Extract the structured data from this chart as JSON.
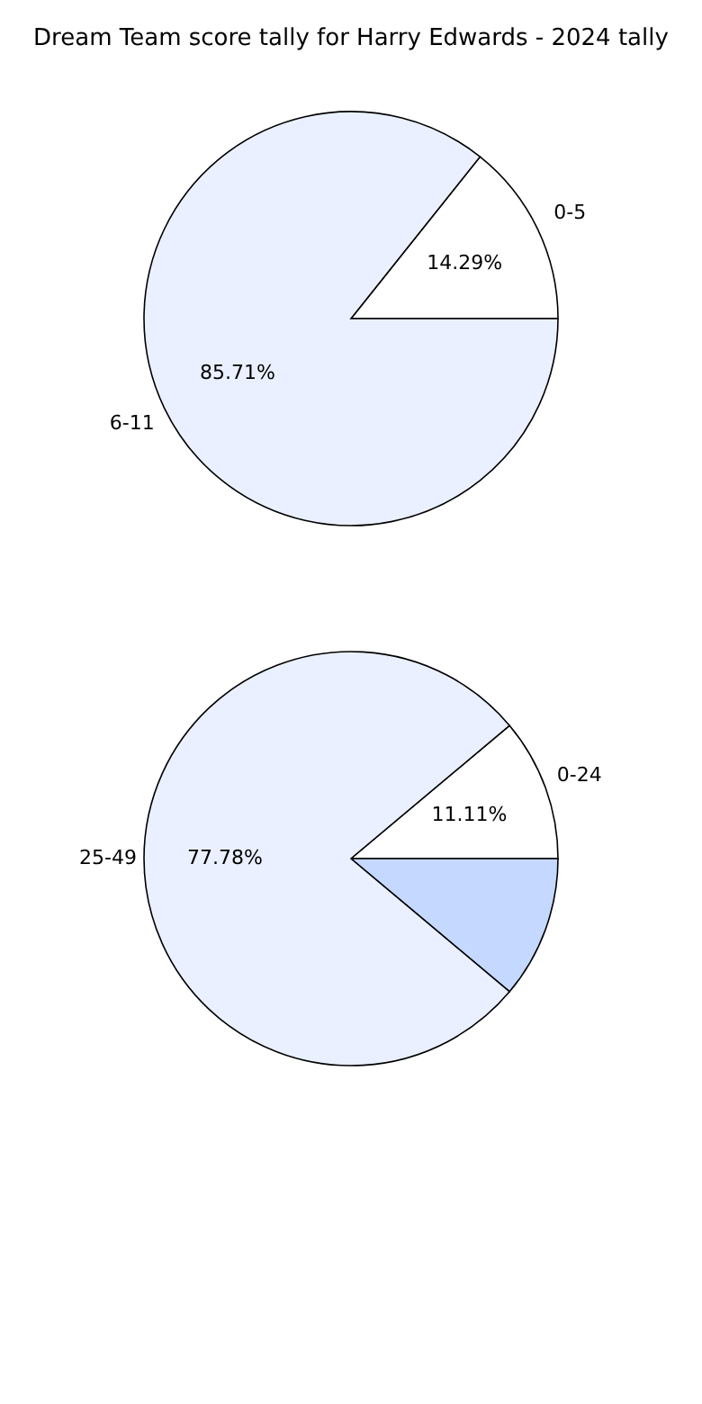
{
  "chart_data": [
    {
      "type": "pie",
      "title": "Dream Team score tally for Harry Edwards - 2024 tally",
      "categories": [
        "0-5",
        "6-11"
      ],
      "values": [
        14.29,
        85.71
      ],
      "colors": [
        "#ffffff",
        "#eaf0ff"
      ],
      "value_labels": [
        "14.29%",
        "85.71%"
      ]
    },
    {
      "type": "pie",
      "categories": [
        "0-24",
        null,
        "25-49"
      ],
      "values": [
        11.11,
        11.11,
        77.78
      ],
      "colors": [
        "#ffffff",
        "#c5d8ff",
        "#eaf0ff"
      ],
      "value_labels": [
        "11.11%",
        null,
        "77.78%"
      ]
    }
  ]
}
